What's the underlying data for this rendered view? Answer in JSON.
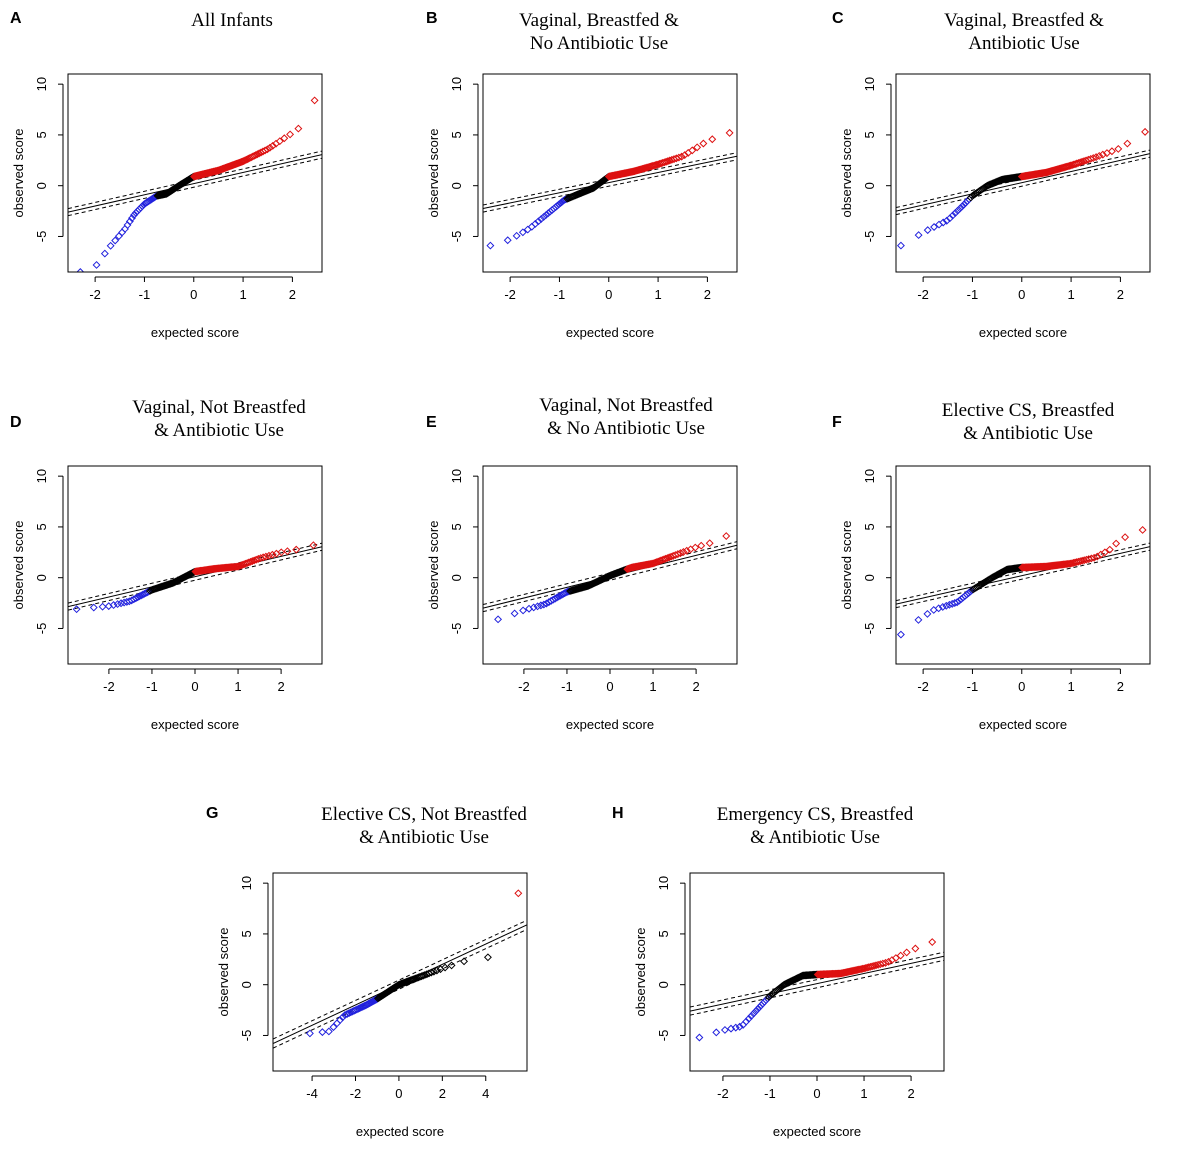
{
  "figure": {
    "x_axis_label": "expected score",
    "y_axis_label": "observed score",
    "colors": {
      "negative": "#2222dd",
      "neutral": "#000000",
      "positive": "#dd1111",
      "frame": "#000000"
    }
  },
  "chart_data": [
    {
      "type": "scatter",
      "letter": "A",
      "title_lines": [
        "All Infants"
      ],
      "xlim": [
        -2.55,
        2.6
      ],
      "ylim": [
        -8.5,
        11
      ],
      "xticks": [
        -2,
        -1,
        0,
        1,
        2
      ],
      "yticks": [
        -5,
        0,
        5,
        10
      ],
      "xlabel": "expected score",
      "ylabel": "observed score",
      "n_points": 170,
      "x_range": [
        -2.3,
        2.45
      ],
      "curve": [
        [
          -2.3,
          -8.5
        ],
        [
          -2.0,
          -8.0
        ],
        [
          -1.7,
          -6.0
        ],
        [
          -1.4,
          -4.3
        ],
        [
          -1.2,
          -2.8
        ],
        [
          -1.0,
          -1.8
        ],
        [
          -0.75,
          -1.0
        ],
        [
          -0.55,
          -0.8
        ],
        [
          -0.3,
          0.0
        ],
        [
          0.0,
          0.9
        ],
        [
          0.5,
          1.5
        ],
        [
          1.0,
          2.4
        ],
        [
          1.5,
          3.6
        ],
        [
          2.0,
          5.2
        ],
        [
          2.2,
          5.9
        ],
        [
          2.3,
          8.1
        ],
        [
          2.45,
          8.4
        ]
      ],
      "neg_until": -0.75,
      "pos_from": 0.0,
      "ref_line": {
        "slope": 1.1,
        "intercept": 0.2,
        "band": 0.35
      }
    },
    {
      "type": "scatter",
      "letter": "B",
      "title_lines": [
        "Vaginal, Breastfed &",
        "No Antibiotic Use"
      ],
      "xlim": [
        -2.55,
        2.6
      ],
      "ylim": [
        -8.5,
        11
      ],
      "xticks": [
        -2,
        -1,
        0,
        1,
        2
      ],
      "yticks": [
        -5,
        0,
        5,
        10
      ],
      "xlabel": "expected score",
      "ylabel": "observed score",
      "n_points": 140,
      "x_range": [
        -2.4,
        2.45
      ],
      "curve": [
        [
          -2.4,
          -5.9
        ],
        [
          -2.0,
          -5.3
        ],
        [
          -1.6,
          -4.2
        ],
        [
          -1.2,
          -2.6
        ],
        [
          -0.9,
          -1.4
        ],
        [
          -0.5,
          -0.6
        ],
        [
          -0.3,
          -0.2
        ],
        [
          0.0,
          0.9
        ],
        [
          0.5,
          1.4
        ],
        [
          1.0,
          2.1
        ],
        [
          1.5,
          2.9
        ],
        [
          2.0,
          4.4
        ],
        [
          2.45,
          5.2
        ]
      ],
      "neg_until": -0.85,
      "pos_from": 0.0,
      "ref_line": {
        "slope": 1.0,
        "intercept": 0.3,
        "band": 0.35
      }
    },
    {
      "type": "scatter",
      "letter": "C",
      "title_lines": [
        "Vaginal, Breastfed &",
        "Antibiotic Use"
      ],
      "xlim": [
        -2.55,
        2.6
      ],
      "ylim": [
        -8.5,
        11
      ],
      "xticks": [
        -2,
        -1,
        0,
        1,
        2
      ],
      "yticks": [
        -5,
        0,
        5,
        10
      ],
      "xlabel": "expected score",
      "ylabel": "observed score",
      "n_points": 140,
      "x_range": [
        -2.45,
        2.5
      ],
      "curve": [
        [
          -2.45,
          -5.9
        ],
        [
          -2.0,
          -4.6
        ],
        [
          -1.5,
          -3.4
        ],
        [
          -1.2,
          -2.0
        ],
        [
          -1.0,
          -1.0
        ],
        [
          -0.7,
          0.0
        ],
        [
          -0.4,
          0.6
        ],
        [
          0.0,
          0.9
        ],
        [
          0.5,
          1.3
        ],
        [
          1.0,
          2.0
        ],
        [
          1.5,
          2.8
        ],
        [
          2.0,
          3.7
        ],
        [
          2.5,
          5.3
        ]
      ],
      "neg_until": -1.05,
      "pos_from": 0.0,
      "ref_line": {
        "slope": 1.1,
        "intercept": 0.3,
        "band": 0.35
      }
    },
    {
      "type": "scatter",
      "letter": "D",
      "title_lines": [
        "Vaginal, Not Breastfed",
        "& Antibiotic Use"
      ],
      "xlim": [
        -2.95,
        2.95
      ],
      "ylim": [
        -8.5,
        11
      ],
      "xticks": [
        -2,
        -1,
        0,
        1,
        2
      ],
      "yticks": [
        -5,
        0,
        5,
        10
      ],
      "xlabel": "expected score",
      "ylabel": "observed score",
      "n_points": 140,
      "x_range": [
        -2.75,
        2.75
      ],
      "curve": [
        [
          -2.75,
          -3.1
        ],
        [
          -2.0,
          -2.8
        ],
        [
          -1.5,
          -2.3
        ],
        [
          -1.0,
          -1.2
        ],
        [
          -0.5,
          -0.5
        ],
        [
          0.0,
          0.6
        ],
        [
          0.5,
          0.9
        ],
        [
          1.0,
          1.1
        ],
        [
          1.5,
          1.9
        ],
        [
          2.0,
          2.5
        ],
        [
          2.4,
          2.8
        ],
        [
          2.75,
          3.2
        ]
      ],
      "neg_until": -1.05,
      "pos_from": 0.0,
      "ref_line": {
        "slope": 1.0,
        "intercept": 0.1,
        "band": 0.35
      }
    },
    {
      "type": "scatter",
      "letter": "E",
      "title_lines": [
        "Vaginal, Not Breastfed",
        "& No Antibiotic Use"
      ],
      "xlim": [
        -2.95,
        2.95
      ],
      "ylim": [
        -8.5,
        11
      ],
      "xticks": [
        -2,
        -1,
        0,
        1,
        2
      ],
      "yticks": [
        -5,
        0,
        5,
        10
      ],
      "xlabel": "expected score",
      "ylabel": "observed score",
      "n_points": 140,
      "x_range": [
        -2.6,
        2.7
      ],
      "curve": [
        [
          -2.6,
          -4.1
        ],
        [
          -2.0,
          -3.2
        ],
        [
          -1.5,
          -2.6
        ],
        [
          -1.0,
          -1.4
        ],
        [
          -0.5,
          -0.8
        ],
        [
          0.0,
          0.2
        ],
        [
          0.5,
          1.0
        ],
        [
          1.0,
          1.4
        ],
        [
          1.5,
          2.2
        ],
        [
          2.0,
          3.0
        ],
        [
          2.4,
          3.5
        ],
        [
          2.7,
          4.1
        ]
      ],
      "neg_until": -0.95,
      "pos_from": 0.4,
      "ref_line": {
        "slope": 1.05,
        "intercept": 0.1,
        "band": 0.35
      }
    },
    {
      "type": "scatter",
      "letter": "F",
      "title_lines": [
        "Elective CS, Breastfed",
        "& Antibiotic Use"
      ],
      "xlim": [
        -2.55,
        2.6
      ],
      "ylim": [
        -8.5,
        11
      ],
      "xticks": [
        -2,
        -1,
        0,
        1,
        2
      ],
      "yticks": [
        -5,
        0,
        5,
        10
      ],
      "xlabel": "expected score",
      "ylabel": "observed score",
      "n_points": 140,
      "x_range": [
        -2.45,
        2.45
      ],
      "curve": [
        [
          -2.45,
          -5.6
        ],
        [
          -2.2,
          -4.5
        ],
        [
          -1.8,
          -3.2
        ],
        [
          -1.3,
          -2.4
        ],
        [
          -1.0,
          -1.2
        ],
        [
          -0.6,
          0.0
        ],
        [
          -0.3,
          0.8
        ],
        [
          0.0,
          1.0
        ],
        [
          0.5,
          1.1
        ],
        [
          1.0,
          1.4
        ],
        [
          1.5,
          2.0
        ],
        [
          1.8,
          2.8
        ],
        [
          2.0,
          3.8
        ],
        [
          2.45,
          4.7
        ]
      ],
      "neg_until": -1.0,
      "pos_from": 0.0,
      "ref_line": {
        "slope": 1.1,
        "intercept": 0.2,
        "band": 0.35
      }
    },
    {
      "type": "scatter",
      "letter": "G",
      "title_lines": [
        "Elective CS, Not Breastfed",
        "& Antibiotic Use"
      ],
      "xlim": [
        -5.8,
        5.9
      ],
      "ylim": [
        -8.5,
        11
      ],
      "xticks": [
        -4,
        -2,
        0,
        2,
        4
      ],
      "yticks": [
        -5,
        0,
        5,
        10
      ],
      "xlabel": "expected score",
      "ylabel": "observed score",
      "n_points": 90,
      "x_range": [
        -4.1,
        3.0
      ],
      "curve": [
        [
          -4.1,
          -4.8
        ],
        [
          -3.2,
          -4.6
        ],
        [
          -2.5,
          -3.0
        ],
        [
          -1.5,
          -2.0
        ],
        [
          -1.0,
          -1.4
        ],
        [
          0.0,
          0.0
        ],
        [
          1.0,
          0.8
        ],
        [
          2.0,
          1.6
        ],
        [
          3.0,
          2.3
        ]
      ],
      "neg_until": -1.0,
      "pos_from": 99,
      "extra_points": [
        {
          "x": 4.1,
          "y": 2.7,
          "group": "neutral"
        },
        {
          "x": 5.5,
          "y": 9.0,
          "group": "positive"
        }
      ],
      "ref_line": {
        "slope": 1.0,
        "intercept": 0.0,
        "band": 0.45
      }
    },
    {
      "type": "scatter",
      "letter": "H",
      "title_lines": [
        "Emergency  CS, Breastfed",
        "& Antibiotic Use"
      ],
      "xlim": [
        -2.7,
        2.7
      ],
      "ylim": [
        -8.5,
        11
      ],
      "xticks": [
        -2,
        -1,
        0,
        1,
        2
      ],
      "yticks": [
        -5,
        0,
        5,
        10
      ],
      "xlabel": "expected score",
      "ylabel": "observed score",
      "n_points": 140,
      "x_range": [
        -2.5,
        2.45
      ],
      "curve": [
        [
          -2.5,
          -5.2
        ],
        [
          -2.0,
          -4.5
        ],
        [
          -1.6,
          -4.1
        ],
        [
          -1.3,
          -2.6
        ],
        [
          -1.0,
          -1.1
        ],
        [
          -0.7,
          0.0
        ],
        [
          -0.3,
          0.9
        ],
        [
          0.0,
          1.0
        ],
        [
          0.5,
          1.1
        ],
        [
          1.0,
          1.6
        ],
        [
          1.5,
          2.2
        ],
        [
          2.0,
          3.4
        ],
        [
          2.45,
          4.2
        ]
      ],
      "neg_until": -1.05,
      "pos_from": 0.0,
      "ref_line": {
        "slope": 1.0,
        "intercept": 0.1,
        "band": 0.4
      }
    }
  ]
}
